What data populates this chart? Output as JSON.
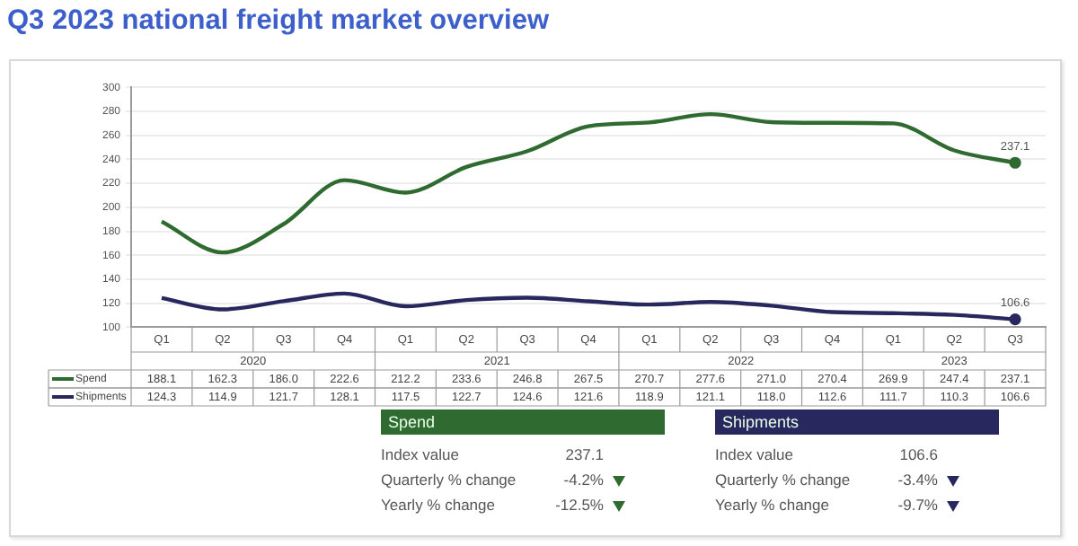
{
  "chart_data": [
    {
      "type": "line",
      "title": "Q3 2023 national freight market overview",
      "categories": [
        "Q1",
        "Q2",
        "Q3",
        "Q4",
        "Q1",
        "Q2",
        "Q3",
        "Q4",
        "Q1",
        "Q2",
        "Q3",
        "Q4",
        "Q1",
        "Q2",
        "Q3"
      ],
      "series": [
        {
          "name": "Spend",
          "color": "#2f6a31",
          "values": [
            188.1,
            162.3,
            186.0,
            222.6,
            212.2,
            233.6,
            246.8,
            267.5,
            270.7,
            277.6,
            271.0,
            270.4,
            269.9,
            247.4,
            237.1
          ],
          "value_labels": [
            "188.1",
            "162.3",
            "186.0",
            "222.6",
            "212.2",
            "233.6",
            "246.8",
            "267.5",
            "270.7",
            "277.6",
            "271.0",
            "270.4",
            "269.9",
            "247.4",
            "237.1"
          ]
        },
        {
          "name": "Shipments",
          "color": "#28285f",
          "values": [
            124.3,
            114.9,
            121.7,
            128.1,
            117.5,
            122.7,
            124.6,
            121.6,
            118.9,
            121.1,
            118.0,
            112.6,
            111.7,
            110.3,
            106.6
          ],
          "value_labels": [
            "124.3",
            "114.9",
            "121.7",
            "128.1",
            "117.5",
            "122.7",
            "124.6",
            "121.6",
            "118.9",
            "121.1",
            "118.0",
            "112.6",
            "111.7",
            "110.3",
            "106.6"
          ]
        }
      ],
      "annotations": [
        "2020",
        "2021",
        "2022",
        "2023"
      ],
      "ylim": [
        100,
        300
      ],
      "yticks": [
        100,
        120,
        140,
        160,
        180,
        200,
        220,
        240,
        260,
        280,
        300
      ],
      "grid": "y",
      "legend": "bottom left",
      "marker": "none",
      "line_style": "solid"
    },
    {
      "type": "other",
      "title": "Spend",
      "annotations": [
        "Index value",
        "237.1",
        "Quarterly % change",
        "-4.2%",
        "Yearly % change",
        "-12.5%"
      ]
    },
    {
      "type": "other",
      "title": "Shipments",
      "annotations": [
        "Index value",
        "106.6",
        "Quarterly % change",
        "-3.4%",
        "Yearly % change",
        "-9.7%"
      ]
    }
  ]
}
